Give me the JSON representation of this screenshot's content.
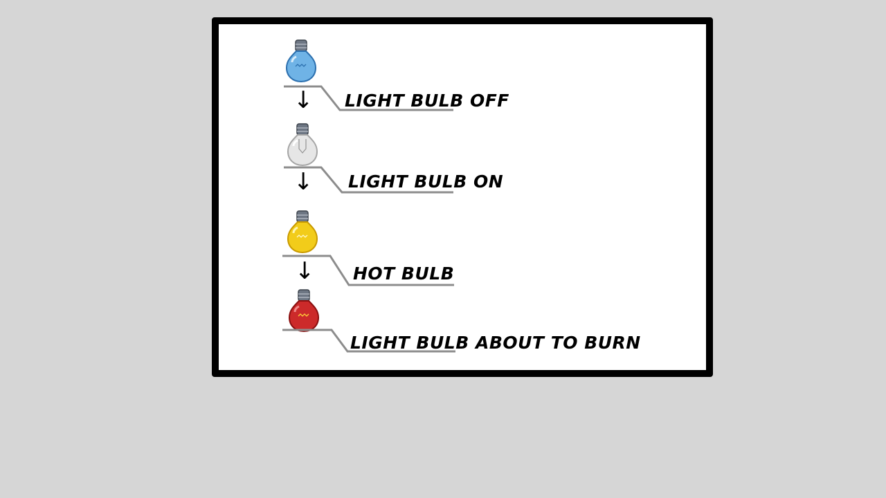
{
  "diagram": {
    "states": [
      {
        "label": "LIGHT BULB OFF",
        "icon": "light-bulb-off-icon",
        "glass_color": "#6fb3e6"
      },
      {
        "label": "LIGHT BULB ON",
        "icon": "light-bulb-on-icon",
        "glass_color": "#e6e6e6"
      },
      {
        "label": "HOT BULB",
        "icon": "hot-bulb-icon",
        "glass_color": "#f2cc1a"
      },
      {
        "label": "LIGHT BULB ABOUT TO BURN",
        "icon": "bulb-about-to-burn-icon",
        "glass_color": "#cc2a2a"
      }
    ],
    "arrow_glyph": "↓",
    "colors": {
      "background": "#d6d6d6",
      "card": "#ffffff",
      "border": "#000000",
      "connector": "#8c8c8c",
      "bulb_base": "#6d7683"
    }
  }
}
